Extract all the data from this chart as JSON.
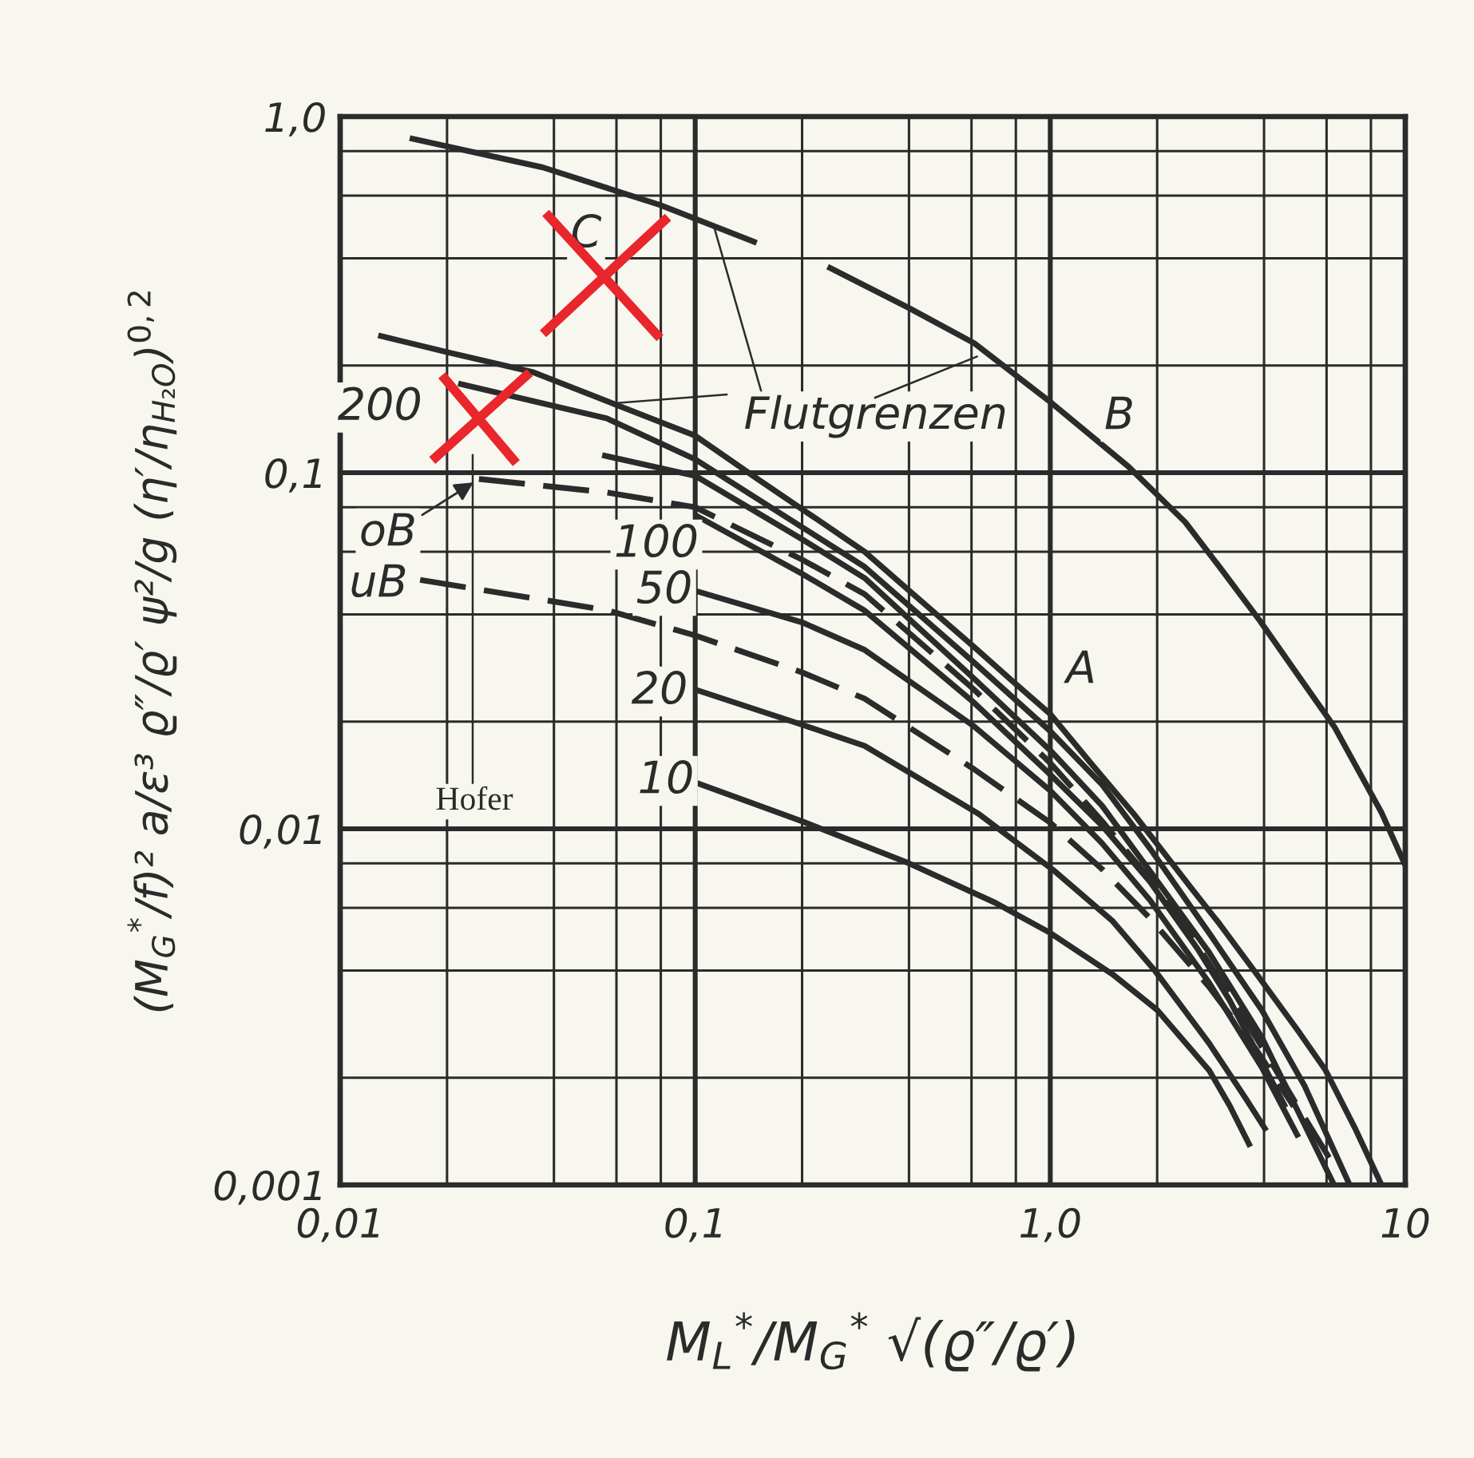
{
  "chart_data": {
    "type": "line",
    "log": "xy",
    "grid": true,
    "line_style": "solid",
    "xlabel": "M$_{L}$$^{*}$/M$_{G}$$^{*}$ √(ϱ″/ϱ′)",
    "ylabel": "(M$_{G}$$^{*}$/f)² a/ε³ ϱ″/ϱ′ ψ²/g (η′/η$_{H₂O}$)$^{0,2}$",
    "xlim": [
      0.01,
      10
    ],
    "ylim": [
      0.001,
      1.0
    ],
    "xticks": [
      {
        "value": 0.01,
        "label": "0,01"
      },
      {
        "value": 0.02,
        "label": null
      },
      {
        "value": 0.04,
        "label": null
      },
      {
        "value": 0.06,
        "label": null
      },
      {
        "value": 0.08,
        "label": null
      },
      {
        "value": 0.1,
        "label": "0,1"
      },
      {
        "value": 0.2,
        "label": null
      },
      {
        "value": 0.4,
        "label": null
      },
      {
        "value": 0.6,
        "label": null
      },
      {
        "value": 0.8,
        "label": null
      },
      {
        "value": 1,
        "label": "1,0"
      },
      {
        "value": 2,
        "label": null
      },
      {
        "value": 4,
        "label": null
      },
      {
        "value": 6,
        "label": null
      },
      {
        "value": 8,
        "label": null
      },
      10
    ],
    "yticks": [
      {
        "value": 0.001,
        "label": "0,001"
      },
      {
        "value": 0.002,
        "label": null
      },
      {
        "value": 0.004,
        "label": null
      },
      {
        "value": 0.006,
        "label": null
      },
      {
        "value": 0.008,
        "label": null
      },
      {
        "value": 0.01,
        "label": "0,01"
      },
      {
        "value": 0.02,
        "label": null
      },
      {
        "value": 0.04,
        "label": null
      },
      {
        "value": 0.06,
        "label": null
      },
      {
        "value": 0.08,
        "label": null
      },
      {
        "value": 0.1,
        "label": "0,1"
      },
      {
        "value": 0.2,
        "label": null
      },
      {
        "value": 0.4,
        "label": null
      },
      {
        "value": 0.6,
        "label": null
      },
      {
        "value": 0.8,
        "label": null
      },
      {
        "value": 1.0,
        "label": "1,0"
      }
    ],
    "series": [
      {
        "color": "#2b2b2b",
        "x": [
          0.0157,
          0.0372,
          0.06,
          0.0795,
          0.149
        ],
        "values": [
          0.87,
          0.72,
          0.618,
          0.565,
          0.442
        ]
      },
      {
        "color": "#2b2b2b",
        "x": [
          0.236,
          0.4,
          0.611,
          1.0,
          1.66,
          2.4,
          3.0,
          3.9,
          5.0,
          6.34,
          8.57,
          10
        ],
        "values": [
          0.379,
          0.29,
          0.231,
          0.158,
          0.104,
          0.0726,
          0.0543,
          0.0383,
          0.0269,
          0.0192,
          0.0111,
          0.0079
        ]
      },
      {
        "color": "#2b2b2b",
        "x": [
          0.0128,
          0.02,
          0.0347,
          0.06,
          0.1,
          0.15,
          0.2,
          0.3,
          0.4,
          0.61,
          0.8,
          1.0,
          1.3,
          1.72,
          2.5,
          3.0,
          3.82,
          5.0,
          5.96,
          7.2,
          8.57
        ],
        "values": [
          0.243,
          0.218,
          0.192,
          0.155,
          0.127,
          0.096,
          0.079,
          0.06,
          0.0467,
          0.0324,
          0.0255,
          0.021,
          0.0153,
          0.011,
          0.0068,
          0.0054,
          0.0039,
          0.0027,
          0.0021,
          0.00145,
          0.001
        ]
      },
      {
        "color": "#2b2b2b",
        "x": [
          0.0215,
          0.0564,
          0.1,
          0.2,
          0.3,
          0.61,
          1.0,
          1.4,
          1.91,
          2.8,
          3.94,
          5.2,
          6.97
        ],
        "values": [
          0.178,
          0.142,
          0.109,
          0.0703,
          0.0544,
          0.0293,
          0.0188,
          0.0133,
          0.0088,
          0.0051,
          0.0031,
          0.0019,
          0.001
        ]
      },
      {
        "color": "#2b2b2b",
        "x": [
          0.0547,
          0.1,
          0.2,
          0.3,
          0.61,
          1.0,
          1.4,
          1.91,
          2.8,
          3.94,
          5.0,
          6.3
        ],
        "values": [
          0.112,
          0.098,
          0.065,
          0.0506,
          0.0264,
          0.0166,
          0.0116,
          0.0076,
          0.0045,
          0.0026,
          0.0016,
          0.001
        ]
      },
      {
        "color": "#2b2b2b",
        "line_style": "dashed",
        "x": [
          0.0246,
          0.0564,
          0.1,
          0.2,
          0.3,
          0.61,
          1.0,
          1.4,
          1.91,
          2.6,
          3.55,
          5.0,
          6.48
        ],
        "values": [
          0.096,
          0.088,
          0.08,
          0.057,
          0.0456,
          0.0246,
          0.0153,
          0.0105,
          0.0072,
          0.0047,
          0.0029,
          0.00165,
          0.00108
        ]
      },
      {
        "color": "#2b2b2b",
        "x": [
          0.1,
          0.2,
          0.3,
          0.61,
          1.0,
          1.4,
          1.91,
          2.6,
          3.2,
          4.6
        ],
        "values": [
          0.076,
          0.052,
          0.041,
          0.0226,
          0.0142,
          0.0102,
          0.0071,
          0.0046,
          0.0033,
          0.00165
        ]
      },
      {
        "color": "#2b2b2b",
        "line_style": "dashed",
        "x": [
          0.0168,
          0.0564,
          0.1,
          0.2,
          0.3,
          0.61,
          1.0,
          1.4,
          1.91,
          2.8,
          3.8,
          4.85
        ],
        "values": [
          0.05,
          0.0411,
          0.0349,
          0.0275,
          0.0232,
          0.0147,
          0.0104,
          0.0077,
          0.0056,
          0.0036,
          0.0024,
          0.00166
        ]
      },
      {
        "color": "#2b2b2b",
        "x": [
          0.1,
          0.2,
          0.3,
          0.61,
          1.0,
          1.4,
          1.91,
          2.8,
          3.94,
          5.0
        ],
        "values": [
          0.0466,
          0.038,
          0.0318,
          0.0194,
          0.0128,
          0.0091,
          0.0063,
          0.0037,
          0.00214,
          0.00136
        ]
      },
      {
        "color": "#2b2b2b",
        "x": [
          0.1,
          0.2,
          0.3,
          0.63,
          1.03,
          1.5,
          1.97,
          2.8,
          3.55,
          4.06
        ],
        "values": [
          0.0246,
          0.0196,
          0.0171,
          0.011,
          0.0076,
          0.0055,
          0.004,
          0.0025,
          0.00175,
          0.00142
        ]
      },
      {
        "color": "#2b2b2b",
        "x": [
          0.1,
          0.2,
          0.4,
          0.7,
          1.0,
          1.5,
          2.0,
          2.8,
          3.2,
          3.66
        ],
        "values": [
          0.0135,
          0.0105,
          0.008,
          0.0062,
          0.0051,
          0.0039,
          0.0031,
          0.0021,
          0.00167,
          0.00128
        ]
      }
    ],
    "annotations": [
      {
        "text": "Flutgrenzen",
        "x": 0.113,
        "y": 0.49
      },
      "Hofer",
      "C",
      {
        "text": "200",
        "x": 0.0215,
        "y": 0.178
      },
      {
        "text": "oB",
        "x": 0.0246,
        "y": 0.096
      },
      "uB",
      "100",
      "50",
      "20",
      "10",
      "A",
      "B"
    ]
  }
}
